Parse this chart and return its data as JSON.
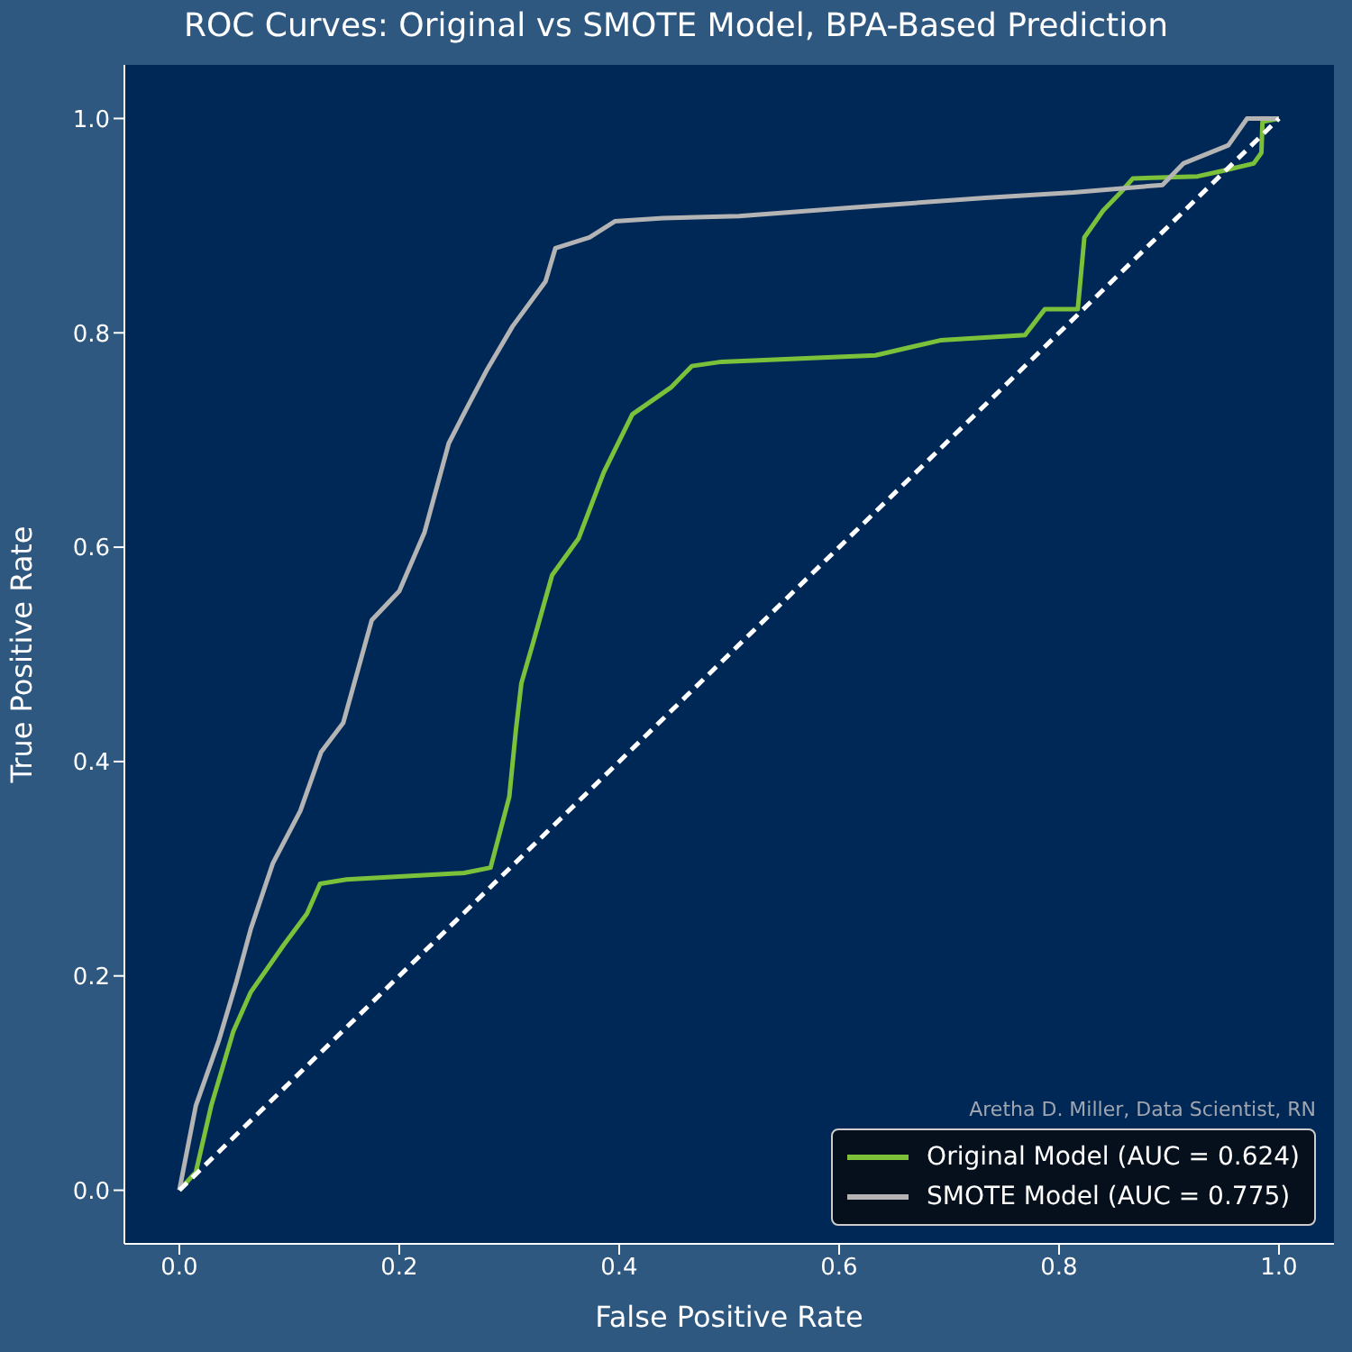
{
  "chart_data": {
    "type": "line",
    "title": "ROC Curves: Original vs SMOTE Model, BPA-Based Prediction",
    "xlabel": "False Positive Rate",
    "ylabel": "True Positive Rate",
    "annotations": [
      "Aretha D. Miller, Data Scientist, RN"
    ],
    "xlim": [
      -0.05,
      1.05
    ],
    "ylim": [
      -0.05,
      1.05
    ],
    "xticks": [
      {
        "value": 0,
        "label": "0.0"
      },
      {
        "value": 0.2,
        "label": "0.2"
      },
      {
        "value": 0.4,
        "label": "0.4"
      },
      {
        "value": 0.6,
        "label": "0.6"
      },
      {
        "value": 0.8,
        "label": "0.8"
      },
      {
        "value": 1,
        "label": "1.0"
      }
    ],
    "yticks": [
      {
        "value": 0,
        "label": "0.0"
      },
      {
        "value": 0.2,
        "label": "0.2"
      },
      {
        "value": 0.4,
        "label": "0.4"
      },
      {
        "value": 0.6,
        "label": "0.6"
      },
      {
        "value": 0.8,
        "label": "0.8"
      },
      {
        "value": 1,
        "label": "1.0"
      }
    ],
    "grid": false,
    "legend": "bottom right",
    "marker": "none",
    "series": [
      {
        "name": "Original Model (AUC = 0.624)",
        "color": "#7dc13b",
        "line_style": "solid",
        "x": [
          0,
          0.015,
          0.029,
          0.049,
          0.065,
          0.095,
          0.116,
          0.128,
          0.152,
          0.259,
          0.283,
          0.3,
          0.306,
          0.311,
          0.322,
          0.339,
          0.363,
          0.386,
          0.412,
          0.447,
          0.466,
          0.493,
          0.633,
          0.692,
          0.769,
          0.787,
          0.817,
          0.823,
          0.84,
          0.856,
          0.867,
          0.926,
          0.948,
          0.977,
          0.984,
          0.985,
          1
        ],
        "values": [
          0,
          0.017,
          0.079,
          0.148,
          0.185,
          0.229,
          0.258,
          0.286,
          0.29,
          0.296,
          0.301,
          0.367,
          0.429,
          0.473,
          0.512,
          0.574,
          0.608,
          0.67,
          0.724,
          0.749,
          0.769,
          0.773,
          0.779,
          0.793,
          0.798,
          0.822,
          0.822,
          0.889,
          0.914,
          0.931,
          0.944,
          0.946,
          0.951,
          0.958,
          0.968,
          0.997,
          1
        ]
      },
      {
        "name": "SMOTE Model (AUC = 0.775)",
        "color": "#b4b4b4",
        "line_style": "solid",
        "x": [
          0,
          0.015,
          0.036,
          0.052,
          0.065,
          0.085,
          0.11,
          0.129,
          0.149,
          0.175,
          0.2,
          0.223,
          0.245,
          0.262,
          0.28,
          0.303,
          0.333,
          0.342,
          0.373,
          0.396,
          0.44,
          0.509,
          0.612,
          0.733,
          0.813,
          0.894,
          0.913,
          0.954,
          0.971,
          1
        ],
        "values": [
          0,
          0.079,
          0.14,
          0.195,
          0.244,
          0.305,
          0.354,
          0.409,
          0.436,
          0.532,
          0.559,
          0.614,
          0.697,
          0.731,
          0.766,
          0.806,
          0.848,
          0.879,
          0.889,
          0.904,
          0.907,
          0.909,
          0.917,
          0.926,
          0.931,
          0.938,
          0.958,
          0.975,
          1,
          1
        ]
      },
      {
        "color": "#ffffff",
        "line_style": "dashed",
        "x": [
          0,
          1
        ],
        "values": [
          0,
          1
        ]
      }
    ]
  }
}
